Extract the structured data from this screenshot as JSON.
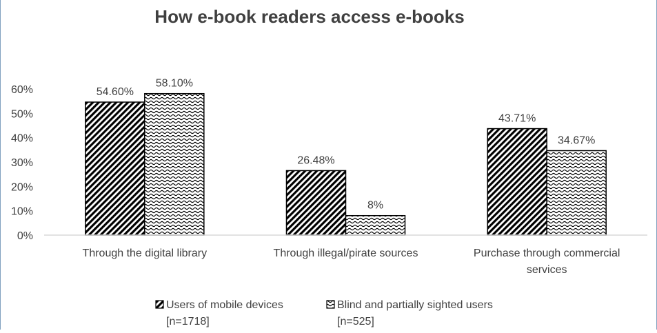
{
  "chart_data": {
    "type": "bar",
    "title": "How e-book readers access e-books",
    "categories": [
      [
        "Through the digital library"
      ],
      [
        "Through illegal/pirate sources"
      ],
      [
        "Purchase through commercial",
        "services"
      ]
    ],
    "series": [
      {
        "name": [
          "Users of mobile devices",
          "[n=1718]"
        ],
        "values": [
          54.6,
          26.48,
          43.71
        ],
        "labels": [
          "54.60%",
          "26.48%",
          "43.71%"
        ],
        "pattern": "diagonal-stripes"
      },
      {
        "name": [
          "Blind and partially sighted users",
          "[n=525]"
        ],
        "values": [
          58.1,
          8,
          34.67
        ],
        "labels": [
          "58.10%",
          "8%",
          "34.67%"
        ],
        "pattern": "waves"
      }
    ],
    "ylim": [
      0,
      60
    ],
    "yticks": [
      0,
      10,
      20,
      30,
      40,
      50,
      60
    ],
    "ytick_labels": [
      "0%",
      "10%",
      "20%",
      "30%",
      "40%",
      "50%",
      "60%"
    ],
    "grid": false,
    "legend_position": "bottom",
    "colors": {
      "bar_stroke": "#000000",
      "axis": "#d9d9d9",
      "text": "#404040",
      "title": "#404040"
    }
  }
}
